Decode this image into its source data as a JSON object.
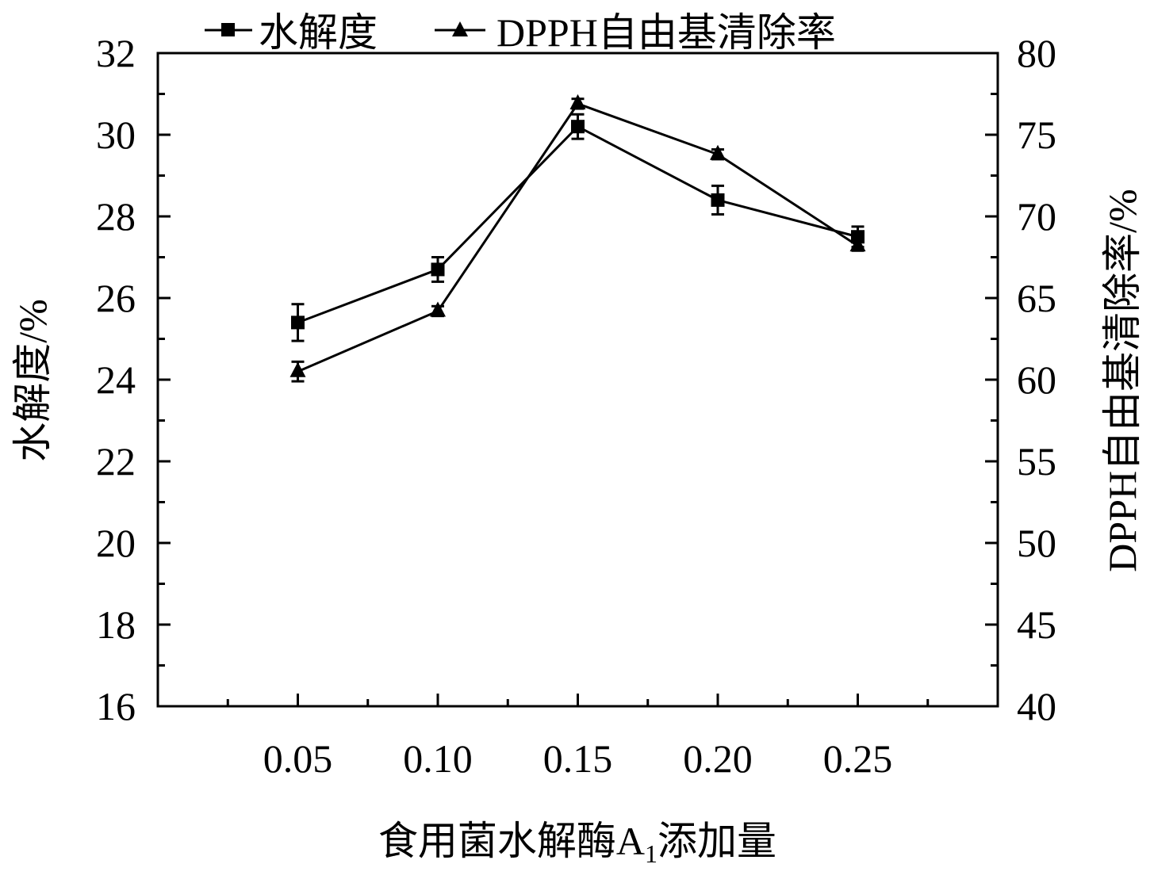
{
  "chart_data": {
    "type": "line",
    "x": [
      0.05,
      0.1,
      0.15,
      0.2,
      0.25
    ],
    "x_tick_labels": [
      "0.05",
      "0.10",
      "0.15",
      "0.20",
      "0.25"
    ],
    "xlabel": "食用菌水解酶A",
    "xlabel_subscript": "1",
    "xlabel_suffix": "添加量",
    "ylabel_left": "水解度/%",
    "ylabel_right": "DPPH自由基清除率/%",
    "ylim_left": [
      16,
      32
    ],
    "ylim_right": [
      40,
      80
    ],
    "y_ticks_left": [
      16,
      18,
      20,
      22,
      24,
      26,
      28,
      30,
      32
    ],
    "y_ticks_right": [
      40,
      45,
      50,
      55,
      60,
      65,
      70,
      75,
      80
    ],
    "legend_placement": "top-center",
    "grid": false,
    "series": [
      {
        "name": "水解度",
        "axis": "left",
        "marker": "square",
        "values": [
          25.4,
          26.7,
          30.2,
          28.4,
          27.5
        ],
        "errors": [
          0.45,
          0.3,
          0.3,
          0.35,
          0.25
        ]
      },
      {
        "name": "DPPH自由基清除率",
        "axis": "right",
        "marker": "triangle",
        "values": [
          60.5,
          64.2,
          76.9,
          73.8,
          68.2
        ],
        "errors": [
          0.6,
          0.3,
          0.3,
          0.3,
          0.3
        ]
      }
    ]
  }
}
